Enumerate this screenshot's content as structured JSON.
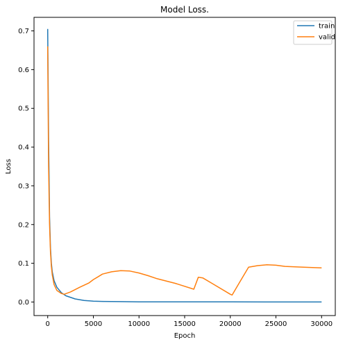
{
  "chart_data": {
    "type": "line",
    "title": "Model Loss.",
    "xlabel": "Epoch",
    "ylabel": "Loss",
    "xlim": [
      -1500,
      31500
    ],
    "ylim": [
      -0.035,
      0.735
    ],
    "xticks": [
      0,
      5000,
      10000,
      15000,
      20000,
      25000,
      30000
    ],
    "yticks": [
      0.0,
      0.1,
      0.2,
      0.3,
      0.4,
      0.5,
      0.6,
      0.7
    ],
    "xtick_labels": [
      "0",
      "5000",
      "10000",
      "15000",
      "20000",
      "25000",
      "30000"
    ],
    "ytick_labels": [
      "0.0",
      "0.1",
      "0.2",
      "0.3",
      "0.4",
      "0.5",
      "0.6",
      "0.7"
    ],
    "grid": false,
    "legend_position": "top-right",
    "series": [
      {
        "name": "train",
        "color": "#1f77b4",
        "x": [
          0,
          100,
          200,
          300,
          400,
          500,
          700,
          1000,
          1500,
          2000,
          3000,
          4000,
          5000,
          6000,
          8000,
          10000,
          15000,
          20000,
          25000,
          30000
        ],
        "y": [
          0.705,
          0.42,
          0.22,
          0.14,
          0.1,
          0.078,
          0.055,
          0.038,
          0.024,
          0.016,
          0.008,
          0.004,
          0.002,
          0.0015,
          0.001,
          0.0005,
          0.0003,
          0.0002,
          0.0001,
          0.0001
        ]
      },
      {
        "name": "valid",
        "color": "#ff7f0e",
        "x": [
          0,
          100,
          200,
          300,
          400,
          500,
          700,
          1000,
          1500,
          1800,
          2500,
          3500,
          4500,
          5000,
          5500,
          6000,
          7000,
          8000,
          9000,
          10000,
          11000,
          12000,
          14000,
          16000,
          16500,
          17000,
          18000,
          20000,
          20200,
          21000,
          22000,
          23000,
          24000,
          25000,
          26000,
          28000,
          30000
        ],
        "y": [
          0.66,
          0.35,
          0.2,
          0.13,
          0.092,
          0.07,
          0.045,
          0.03,
          0.022,
          0.02,
          0.026,
          0.038,
          0.049,
          0.058,
          0.065,
          0.072,
          0.078,
          0.081,
          0.08,
          0.075,
          0.068,
          0.06,
          0.048,
          0.033,
          0.064,
          0.062,
          0.048,
          0.02,
          0.018,
          0.05,
          0.09,
          0.094,
          0.096,
          0.095,
          0.092,
          0.09,
          0.088
        ]
      }
    ]
  }
}
